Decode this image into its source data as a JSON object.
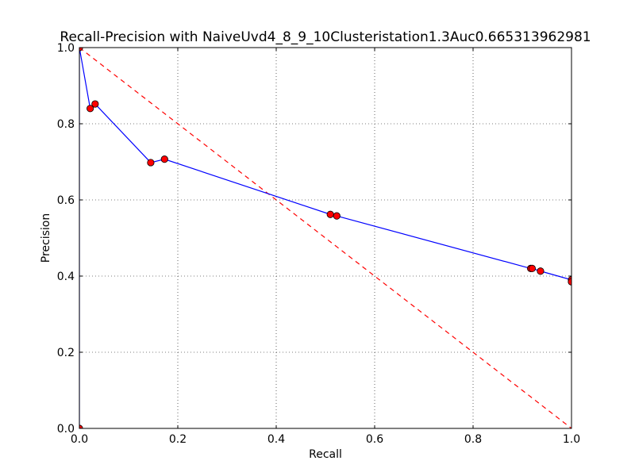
{
  "chart_data": {
    "type": "line",
    "title": "Recall-Precision with NaiveUvd4_8_9_10Clusteristation1.3Auc0.665313962981",
    "xlabel": "Recall",
    "ylabel": "Precision",
    "xlim": [
      0.0,
      1.0
    ],
    "ylim": [
      0.0,
      1.0
    ],
    "grid": true,
    "x_ticks": [
      "0.0",
      "0.2",
      "0.4",
      "0.6",
      "0.8",
      "1.0"
    ],
    "y_ticks": [
      "0.0",
      "0.2",
      "0.4",
      "0.6",
      "0.8",
      "1.0"
    ],
    "series": [
      {
        "color": "#0000ff",
        "marker_color": "#ff0000",
        "marker": "circle",
        "x": [
          0.0,
          0.0,
          0.022,
          0.032,
          0.145,
          0.173,
          0.51,
          0.523,
          0.917,
          0.92,
          0.937,
          1.0,
          1.0
        ],
        "y": [
          0.0,
          1.0,
          0.84,
          0.852,
          0.698,
          0.707,
          0.562,
          0.558,
          0.42,
          0.42,
          0.413,
          0.39,
          0.385
        ]
      },
      {
        "color": "#ff0000",
        "style": "dashed",
        "x": [
          0.0,
          1.0
        ],
        "y": [
          1.0,
          0.0
        ]
      }
    ]
  }
}
